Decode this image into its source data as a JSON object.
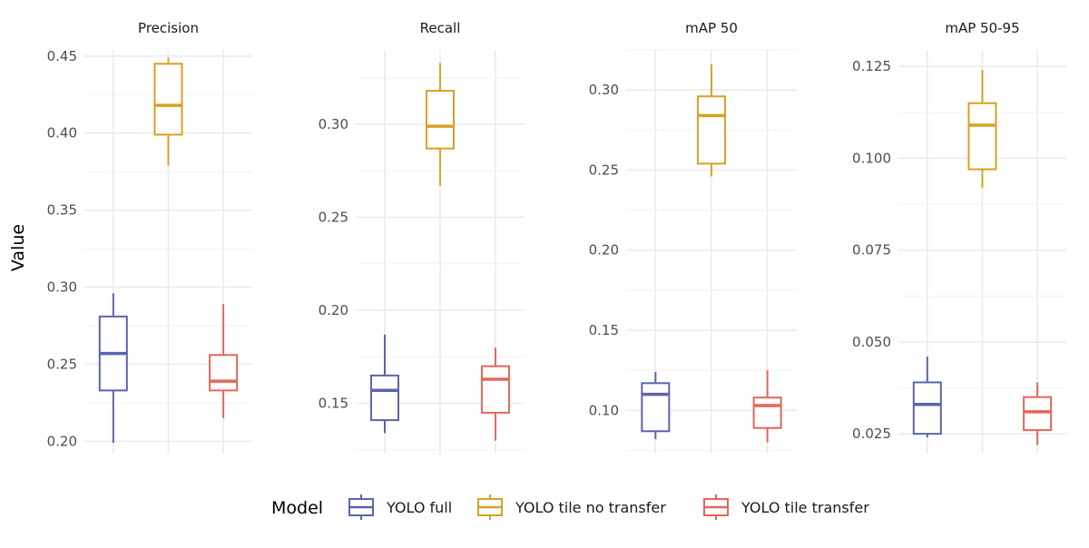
{
  "chart_data": {
    "type": "boxplot",
    "ylabel": "Value",
    "legend": {
      "title": "Model",
      "placement": "bottom",
      "entries": [
        {
          "label": "YOLO full",
          "color": "#5b64ad"
        },
        {
          "label": "YOLO tile no transfer",
          "color": "#d9a120"
        },
        {
          "label": "YOLO tile transfer",
          "color": "#e4665a"
        }
      ]
    },
    "grid": true,
    "panels": [
      {
        "title": "Precision",
        "ylim": [
          0.192,
          0.454
        ],
        "yticks": [
          0.2,
          0.25,
          0.3,
          0.35,
          0.4,
          0.45
        ],
        "tick_labels": [
          "0.20",
          "0.25",
          "0.30",
          "0.35",
          "0.40",
          "0.45"
        ],
        "boxes": [
          {
            "model": "YOLO full",
            "min": 0.199,
            "q1": 0.233,
            "median": 0.257,
            "q3": 0.281,
            "max": 0.296
          },
          {
            "model": "YOLO tile no transfer",
            "min": 0.379,
            "q1": 0.399,
            "median": 0.418,
            "q3": 0.445,
            "max": 0.449
          },
          {
            "model": "YOLO tile transfer",
            "min": 0.215,
            "q1": 0.233,
            "median": 0.239,
            "q3": 0.256,
            "max": 0.289
          }
        ]
      },
      {
        "title": "Recall",
        "ylim": [
          0.123,
          0.34
        ],
        "yticks": [
          0.15,
          0.2,
          0.25,
          0.3
        ],
        "tick_labels": [
          "0.15",
          "0.20",
          "0.25",
          "0.30"
        ],
        "boxes": [
          {
            "model": "YOLO full",
            "min": 0.134,
            "q1": 0.141,
            "median": 0.157,
            "q3": 0.165,
            "max": 0.187
          },
          {
            "model": "YOLO tile no transfer",
            "min": 0.267,
            "q1": 0.287,
            "median": 0.299,
            "q3": 0.318,
            "max": 0.333
          },
          {
            "model": "YOLO tile transfer",
            "min": 0.13,
            "q1": 0.145,
            "median": 0.163,
            "q3": 0.17,
            "max": 0.18
          }
        ]
      },
      {
        "title": "mAP 50",
        "ylim": [
          0.073,
          0.325
        ],
        "yticks": [
          0.1,
          0.15,
          0.2,
          0.25,
          0.3
        ],
        "tick_labels": [
          "0.10",
          "0.15",
          "0.20",
          "0.25",
          "0.30"
        ],
        "boxes": [
          {
            "model": "YOLO full",
            "min": 0.082,
            "q1": 0.087,
            "median": 0.11,
            "q3": 0.117,
            "max": 0.124
          },
          {
            "model": "YOLO tile no transfer",
            "min": 0.246,
            "q1": 0.254,
            "median": 0.284,
            "q3": 0.296,
            "max": 0.316
          },
          {
            "model": "YOLO tile transfer",
            "min": 0.08,
            "q1": 0.089,
            "median": 0.103,
            "q3": 0.108,
            "max": 0.125
          }
        ]
      },
      {
        "title": "mAP 50-95",
        "ylim": [
          0.0196,
          0.1295
        ],
        "yticks": [
          0.025,
          0.05,
          0.075,
          0.1,
          0.125
        ],
        "tick_labels": [
          "0.025",
          "0.050",
          "0.075",
          "0.100",
          "0.125"
        ],
        "boxes": [
          {
            "model": "YOLO full",
            "min": 0.024,
            "q1": 0.025,
            "median": 0.033,
            "q3": 0.039,
            "max": 0.046
          },
          {
            "model": "YOLO tile no transfer",
            "min": 0.092,
            "q1": 0.097,
            "median": 0.109,
            "q3": 0.115,
            "max": 0.124
          },
          {
            "model": "YOLO tile transfer",
            "min": 0.022,
            "q1": 0.026,
            "median": 0.031,
            "q3": 0.035,
            "max": 0.039
          }
        ]
      }
    ]
  }
}
